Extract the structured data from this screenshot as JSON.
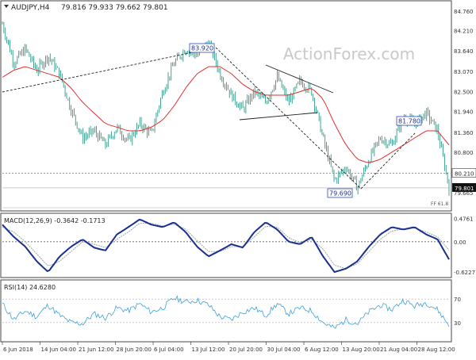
{
  "header": {
    "symbol_text": "AUDJPY,H4",
    "ohlc_text": "79.816 79.933 79.662 79.801"
  },
  "watermark": "ActionForex.com",
  "colors": {
    "candle": "#1a8a78",
    "ma": "#e0302c",
    "macd_main": "#1a2f8f",
    "macd_signal": "#9aa3b0",
    "rsi": "#3aa0d8",
    "trend": "#222222"
  },
  "chart_data": [
    {
      "type": "candlestick",
      "title": "AUDJPY,H4",
      "ylim": [
        79.2,
        85.0
      ],
      "y_ticks": [
        "84.760",
        "84.210",
        "83.640",
        "83.070",
        "82.500",
        "81.940",
        "81.360",
        "80.800",
        "80.210",
        "79.665"
      ],
      "x_ticks": [
        "6 Jun 2018",
        "14 Jun 04:00",
        "21 Jun 12:00",
        "28 Jun 20:00",
        "6 Jul 04:00",
        "13 Jul 12:00",
        "20 Jul 20:00",
        "30 Jul 04:00",
        "6 Aug 12:00",
        "13 Aug 20:00",
        "21 Aug 04:00",
        "28 Aug 12:00"
      ],
      "close_path": [
        84.4,
        83.3,
        83.7,
        83.1,
        83.5,
        83.0,
        82.0,
        81.2,
        81.4,
        81.0,
        81.5,
        81.1,
        81.6,
        81.3,
        82.5,
        83.3,
        83.7,
        83.5,
        83.9,
        83.0,
        82.4,
        82.0,
        82.5,
        82.2,
        82.9,
        82.2,
        82.8,
        82.5,
        81.2,
        80.0,
        80.4,
        79.8,
        80.6,
        81.2,
        81.0,
        81.8,
        81.6,
        81.9,
        81.4,
        79.8
      ],
      "ma_path": [
        82.9,
        83.1,
        83.2,
        83.1,
        83.0,
        82.9,
        82.6,
        82.2,
        81.9,
        81.6,
        81.5,
        81.4,
        81.4,
        81.5,
        81.7,
        82.1,
        82.6,
        83.0,
        83.2,
        83.2,
        83.0,
        82.7,
        82.5,
        82.4,
        82.4,
        82.4,
        82.5,
        82.6,
        82.3,
        81.6,
        81.0,
        80.6,
        80.5,
        80.6,
        80.8,
        81.0,
        81.2,
        81.4,
        81.4,
        81.0
      ],
      "annotations": [
        "83.920",
        "81.780",
        "79.690"
      ],
      "price_lines": [
        "80.210",
        "79.801"
      ],
      "fibo_label": "FF 61.8"
    },
    {
      "type": "line",
      "title": "MACD(12,26,9) -0.3642 -0.1713",
      "ylim": [
        -0.7,
        0.55
      ],
      "y_ticks": [
        "0.4761",
        "0.00",
        "-0.6227"
      ],
      "main": [
        0.35,
        0.1,
        -0.1,
        -0.4,
        -0.62,
        -0.3,
        -0.1,
        0.05,
        -0.12,
        -0.18,
        0.15,
        0.3,
        0.46,
        0.35,
        0.3,
        0.4,
        0.2,
        -0.1,
        -0.3,
        -0.18,
        -0.05,
        -0.12,
        0.2,
        0.4,
        0.25,
        0.0,
        -0.05,
        0.1,
        -0.3,
        -0.62,
        -0.55,
        -0.4,
        -0.1,
        0.15,
        0.3,
        0.25,
        0.3,
        0.15,
        0.05,
        -0.36
      ],
      "signal": [
        0.3,
        0.2,
        0.0,
        -0.25,
        -0.5,
        -0.4,
        -0.2,
        0.0,
        -0.05,
        -0.12,
        0.05,
        0.2,
        0.38,
        0.38,
        0.32,
        0.36,
        0.26,
        0.02,
        -0.2,
        -0.2,
        -0.1,
        -0.1,
        0.1,
        0.32,
        0.3,
        0.08,
        -0.02,
        0.05,
        -0.15,
        -0.48,
        -0.55,
        -0.45,
        -0.2,
        0.05,
        0.22,
        0.26,
        0.28,
        0.2,
        0.1,
        -0.17
      ]
    },
    {
      "type": "line",
      "title": "RSI(14) 24.6280",
      "ylim": [
        0,
        100
      ],
      "y_ticks": [
        "70",
        "30"
      ],
      "values": [
        62,
        35,
        50,
        40,
        60,
        42,
        30,
        28,
        45,
        38,
        55,
        50,
        62,
        48,
        55,
        72,
        65,
        68,
        60,
        40,
        35,
        48,
        55,
        42,
        62,
        45,
        55,
        50,
        30,
        20,
        35,
        28,
        48,
        60,
        52,
        68,
        58,
        64,
        52,
        25
      ]
    }
  ]
}
